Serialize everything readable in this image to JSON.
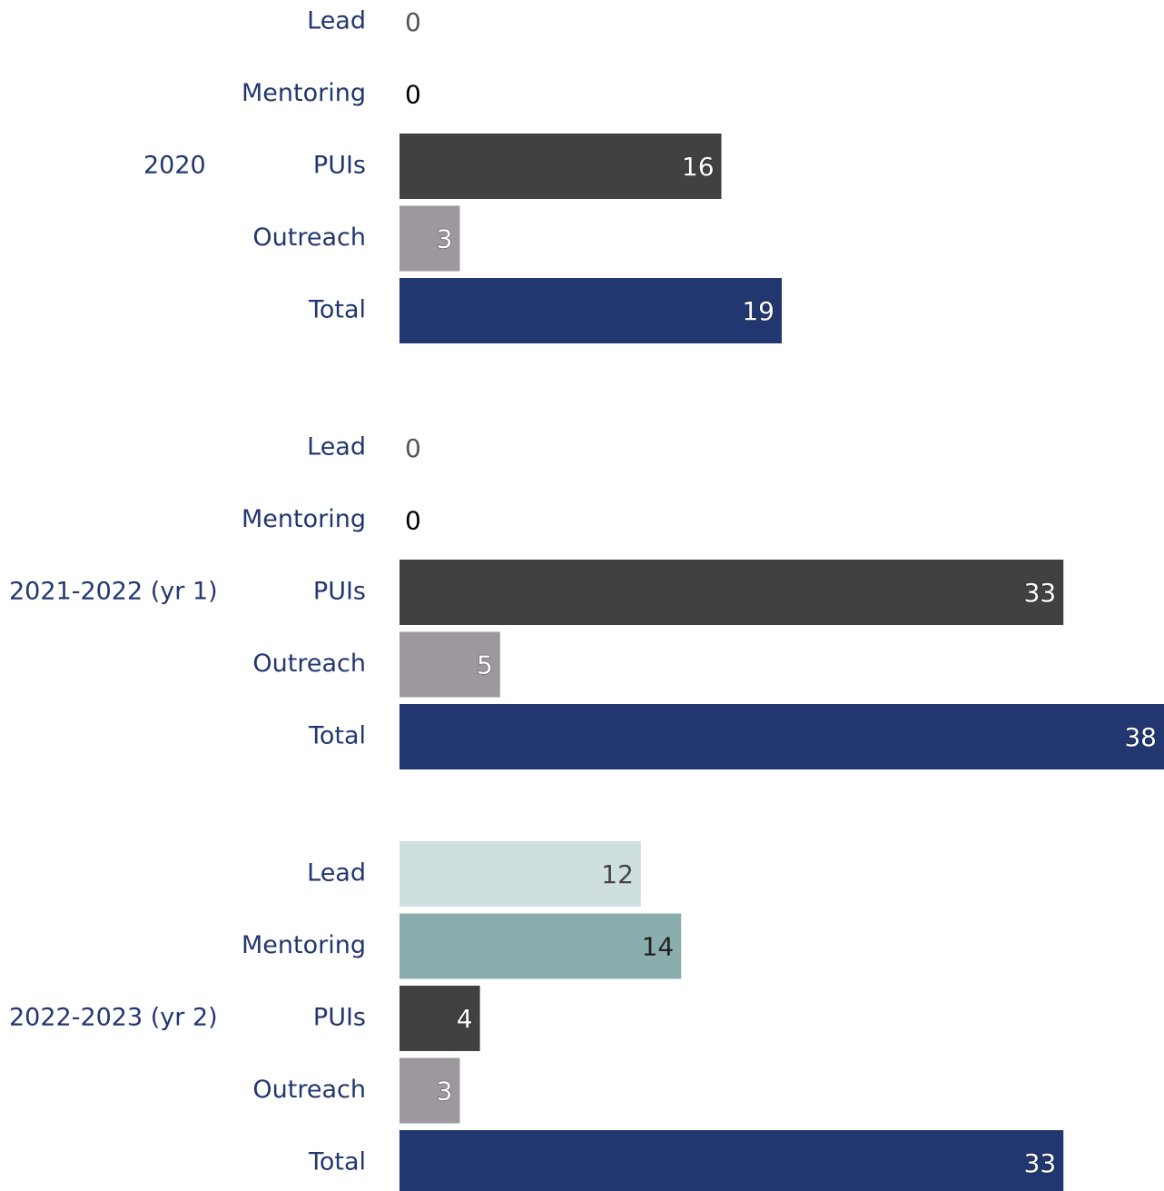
{
  "chart_data": {
    "type": "bar",
    "orientation": "horizontal",
    "grid": false,
    "legend": "none",
    "xlim": [
      0,
      38
    ],
    "categories": [
      "Lead",
      "Mentoring",
      "PUIs",
      "Outreach",
      "Total"
    ],
    "colors": {
      "Lead": "#cfdfdf",
      "Mentoring": "#8aadad",
      "PUIs": "#414141",
      "Outreach": "#9d989e",
      "Total": "#22376f"
    },
    "label_colors": {
      "category": "#22376f",
      "value_dark_text": "#222222",
      "value_light_text": "#ffffff",
      "zero_lead": "#555555",
      "zero_mentoring": "#000000"
    },
    "groups": [
      {
        "name": "2020",
        "values": [
          0,
          0,
          16,
          3,
          19
        ]
      },
      {
        "name": "2021-2022 (yr 1)",
        "values": [
          0,
          0,
          33,
          5,
          38
        ]
      },
      {
        "name": "2022-2023 (yr 2)",
        "values": [
          12,
          14,
          4,
          3,
          33
        ]
      }
    ]
  }
}
